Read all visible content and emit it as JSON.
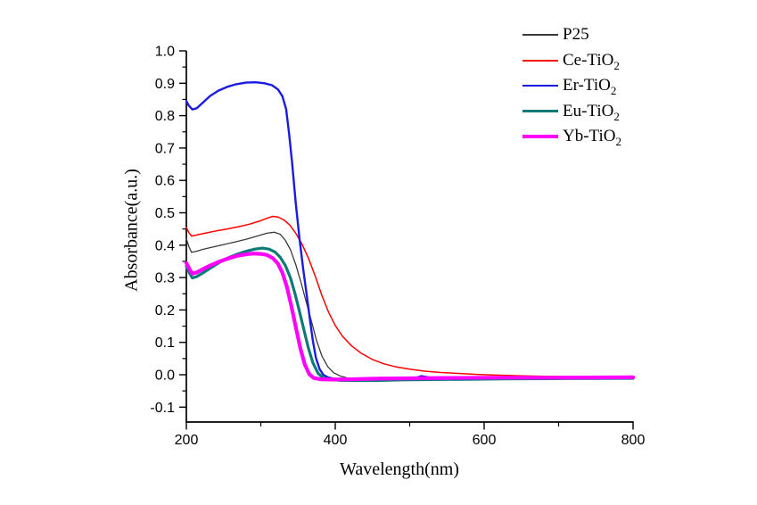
{
  "chart_data": {
    "type": "line",
    "title": "",
    "xlabel": "Wavelength(nm)",
    "ylabel": "Absorbance(a.u.)",
    "xlim": [
      200,
      800
    ],
    "ylim": [
      -0.15,
      1.0
    ],
    "grid": false,
    "legend_position": "top-right-outside",
    "axis_color": "#000000",
    "x_ticks": {
      "major": [
        {
          "v": 200,
          "label": "200"
        },
        {
          "v": 400,
          "label": "400"
        },
        {
          "v": 600,
          "label": "600"
        },
        {
          "v": 800,
          "label": "800"
        }
      ],
      "minor": [
        300,
        500,
        700
      ]
    },
    "y_ticks": {
      "major": [
        {
          "v": 1.0,
          "label": "1.0"
        },
        {
          "v": 0.9,
          "label": "0.9"
        },
        {
          "v": 0.8,
          "label": "0.8"
        },
        {
          "v": 0.7,
          "label": "0.7"
        },
        {
          "v": 0.6,
          "label": "0.6"
        },
        {
          "v": 0.5,
          "label": "0.5"
        },
        {
          "v": 0.4,
          "label": "0.4"
        },
        {
          "v": 0.3,
          "label": "0.3"
        },
        {
          "v": 0.2,
          "label": "0.2"
        },
        {
          "v": 0.1,
          "label": "0.1"
        },
        {
          "v": 0.0,
          "label": "0.0"
        },
        {
          "v": -0.1,
          "label": "-0.1"
        }
      ],
      "minor": [
        0.95,
        0.85,
        0.75,
        0.65,
        0.55,
        0.45,
        0.35,
        0.25,
        0.15,
        0.05,
        -0.05
      ]
    },
    "series": [
      {
        "name": "P25",
        "legend_main": "P25",
        "legend_sub": "",
        "color": "#3a3a3a",
        "width": 1.3,
        "points": [
          [
            200,
            0.42
          ],
          [
            203,
            0.398
          ],
          [
            207,
            0.378
          ],
          [
            213,
            0.381
          ],
          [
            222,
            0.387
          ],
          [
            235,
            0.394
          ],
          [
            250,
            0.402
          ],
          [
            265,
            0.41
          ],
          [
            280,
            0.418
          ],
          [
            295,
            0.428
          ],
          [
            308,
            0.437
          ],
          [
            318,
            0.44
          ],
          [
            326,
            0.434
          ],
          [
            333,
            0.415
          ],
          [
            340,
            0.385
          ],
          [
            347,
            0.34
          ],
          [
            354,
            0.285
          ],
          [
            361,
            0.225
          ],
          [
            368,
            0.165
          ],
          [
            375,
            0.105
          ],
          [
            382,
            0.058
          ],
          [
            390,
            0.025
          ],
          [
            398,
            0.006
          ],
          [
            407,
            -0.004
          ],
          [
            418,
            -0.011
          ],
          [
            435,
            -0.014
          ],
          [
            470,
            -0.015
          ],
          [
            520,
            -0.014
          ],
          [
            580,
            -0.013
          ],
          [
            650,
            -0.012
          ],
          [
            720,
            -0.011
          ],
          [
            800,
            -0.011
          ]
        ]
      },
      {
        "name": "Ce-TiO2",
        "legend_main": "Ce-TiO",
        "legend_sub": "2",
        "color": "#fe0000",
        "width": 1.5,
        "points": [
          [
            200,
            0.455
          ],
          [
            203,
            0.44
          ],
          [
            207,
            0.428
          ],
          [
            213,
            0.431
          ],
          [
            225,
            0.437
          ],
          [
            240,
            0.444
          ],
          [
            255,
            0.45
          ],
          [
            270,
            0.457
          ],
          [
            285,
            0.465
          ],
          [
            298,
            0.474
          ],
          [
            308,
            0.483
          ],
          [
            316,
            0.489
          ],
          [
            323,
            0.487
          ],
          [
            331,
            0.478
          ],
          [
            339,
            0.462
          ],
          [
            347,
            0.437
          ],
          [
            355,
            0.405
          ],
          [
            364,
            0.36
          ],
          [
            373,
            0.305
          ],
          [
            382,
            0.245
          ],
          [
            391,
            0.193
          ],
          [
            400,
            0.152
          ],
          [
            410,
            0.118
          ],
          [
            422,
            0.089
          ],
          [
            435,
            0.066
          ],
          [
            450,
            0.047
          ],
          [
            465,
            0.034
          ],
          [
            482,
            0.024
          ],
          [
            500,
            0.017
          ],
          [
            520,
            0.011
          ],
          [
            542,
            0.007
          ],
          [
            565,
            0.004
          ],
          [
            590,
            0.001
          ],
          [
            615,
            -0.001
          ],
          [
            645,
            -0.003
          ],
          [
            680,
            -0.005
          ],
          [
            720,
            -0.006
          ],
          [
            760,
            -0.007
          ],
          [
            800,
            -0.008
          ]
        ]
      },
      {
        "name": "Er-TiO2",
        "legend_main": "Er-TiO",
        "legend_sub": "2",
        "color": "#1b1be0",
        "width": 2.4,
        "points": [
          [
            200,
            0.845
          ],
          [
            203,
            0.832
          ],
          [
            208,
            0.819
          ],
          [
            214,
            0.823
          ],
          [
            222,
            0.84
          ],
          [
            232,
            0.861
          ],
          [
            243,
            0.877
          ],
          [
            255,
            0.889
          ],
          [
            267,
            0.897
          ],
          [
            280,
            0.902
          ],
          [
            293,
            0.903
          ],
          [
            305,
            0.9
          ],
          [
            315,
            0.894
          ],
          [
            323,
            0.881
          ],
          [
            329,
            0.86
          ],
          [
            334,
            0.82
          ],
          [
            338,
            0.745
          ],
          [
            342,
            0.655
          ],
          [
            347,
            0.53
          ],
          [
            352,
            0.42
          ],
          [
            357,
            0.325
          ],
          [
            362,
            0.24
          ],
          [
            366,
            0.17
          ],
          [
            370,
            0.105
          ],
          [
            374,
            0.052
          ],
          [
            379,
            0.017
          ],
          [
            384,
            0.0
          ],
          [
            390,
            -0.008
          ],
          [
            398,
            -0.012
          ],
          [
            410,
            -0.014
          ],
          [
            430,
            -0.015
          ],
          [
            455,
            -0.015
          ],
          [
            480,
            -0.014
          ],
          [
            500,
            -0.012
          ],
          [
            509,
            -0.009
          ],
          [
            516,
            -0.004
          ],
          [
            523,
            -0.007
          ],
          [
            532,
            -0.011
          ],
          [
            545,
            -0.013
          ],
          [
            570,
            -0.013
          ],
          [
            610,
            -0.012
          ],
          [
            660,
            -0.012
          ],
          [
            720,
            -0.011
          ],
          [
            800,
            -0.01
          ]
        ]
      },
      {
        "name": "Eu-TiO2",
        "legend_main": "Eu-TiO",
        "legend_sub": "2",
        "color": "#0d7a78",
        "width": 3.2,
        "points": [
          [
            200,
            0.335
          ],
          [
            204,
            0.315
          ],
          [
            208,
            0.299
          ],
          [
            214,
            0.303
          ],
          [
            222,
            0.314
          ],
          [
            232,
            0.329
          ],
          [
            244,
            0.346
          ],
          [
            256,
            0.361
          ],
          [
            268,
            0.372
          ],
          [
            280,
            0.381
          ],
          [
            292,
            0.388
          ],
          [
            302,
            0.391
          ],
          [
            311,
            0.388
          ],
          [
            319,
            0.379
          ],
          [
            326,
            0.363
          ],
          [
            333,
            0.337
          ],
          [
            340,
            0.298
          ],
          [
            346,
            0.25
          ],
          [
            352,
            0.195
          ],
          [
            358,
            0.138
          ],
          [
            364,
            0.082
          ],
          [
            370,
            0.037
          ],
          [
            377,
            0.004
          ],
          [
            384,
            -0.01
          ],
          [
            392,
            -0.015
          ],
          [
            405,
            -0.017
          ],
          [
            425,
            -0.018
          ],
          [
            455,
            -0.018
          ],
          [
            490,
            -0.016
          ],
          [
            530,
            -0.015
          ],
          [
            575,
            -0.014
          ],
          [
            625,
            -0.013
          ],
          [
            690,
            -0.012
          ],
          [
            800,
            -0.011
          ]
        ]
      },
      {
        "name": "Yb-TiO2",
        "legend_main": "Yb-TiO",
        "legend_sub": "2",
        "color": "#ff00fe",
        "width": 4.2,
        "points": [
          [
            200,
            0.345
          ],
          [
            204,
            0.327
          ],
          [
            208,
            0.312
          ],
          [
            214,
            0.316
          ],
          [
            222,
            0.326
          ],
          [
            232,
            0.337
          ],
          [
            244,
            0.349
          ],
          [
            256,
            0.359
          ],
          [
            268,
            0.367
          ],
          [
            280,
            0.372
          ],
          [
            290,
            0.374
          ],
          [
            300,
            0.373
          ],
          [
            308,
            0.37
          ],
          [
            316,
            0.36
          ],
          [
            323,
            0.343
          ],
          [
            329,
            0.315
          ],
          [
            335,
            0.272
          ],
          [
            341,
            0.213
          ],
          [
            347,
            0.148
          ],
          [
            353,
            0.082
          ],
          [
            359,
            0.032
          ],
          [
            365,
            0.002
          ],
          [
            371,
            -0.01
          ],
          [
            380,
            -0.014
          ],
          [
            395,
            -0.015
          ],
          [
            420,
            -0.014
          ],
          [
            455,
            -0.012
          ],
          [
            500,
            -0.011
          ],
          [
            550,
            -0.01
          ],
          [
            610,
            -0.009
          ],
          [
            690,
            -0.009
          ],
          [
            800,
            -0.008
          ]
        ]
      }
    ]
  }
}
